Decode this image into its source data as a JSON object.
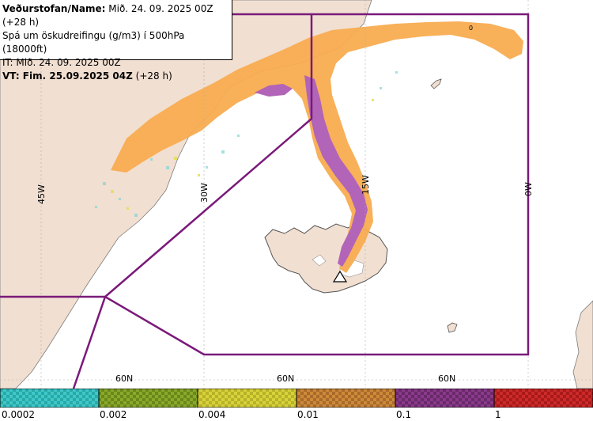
{
  "info": {
    "line1_bold": "Veðurstofan/Name:",
    "line1_rest": " Mið. 24. 09. 2025 00Z (+28 h)",
    "line2": "Spá um öskudreifingu (g/m3) í 500hPa (18000ft)",
    "line3": "IT: Mið. 24. 09. 2025 00Z",
    "line4_bold": "VT: Fim. 25.09.2025 04Z",
    "line4_rest": " (+28 h)"
  },
  "map": {
    "longitude_labels": [
      "45W",
      "30W",
      "15W",
      "0W"
    ],
    "latitude_labels": [
      "60N",
      "60N",
      "60N"
    ],
    "small_label": "0",
    "colors": {
      "land": "#f1dfd1",
      "sea": "#ffffff",
      "ash_low": "#f8ac50",
      "ash_high": "#b264b8",
      "boundary": "#7a1a7a"
    }
  },
  "legend": {
    "labels": [
      "0.0002",
      "0.002",
      "0.004",
      "0.01",
      "0.1",
      "1"
    ],
    "colors": [
      "#3ec8c8",
      "#8aa82a",
      "#d8d23a",
      "#cc8a3a",
      "#8a3a8a",
      "#cc2a2a"
    ]
  }
}
